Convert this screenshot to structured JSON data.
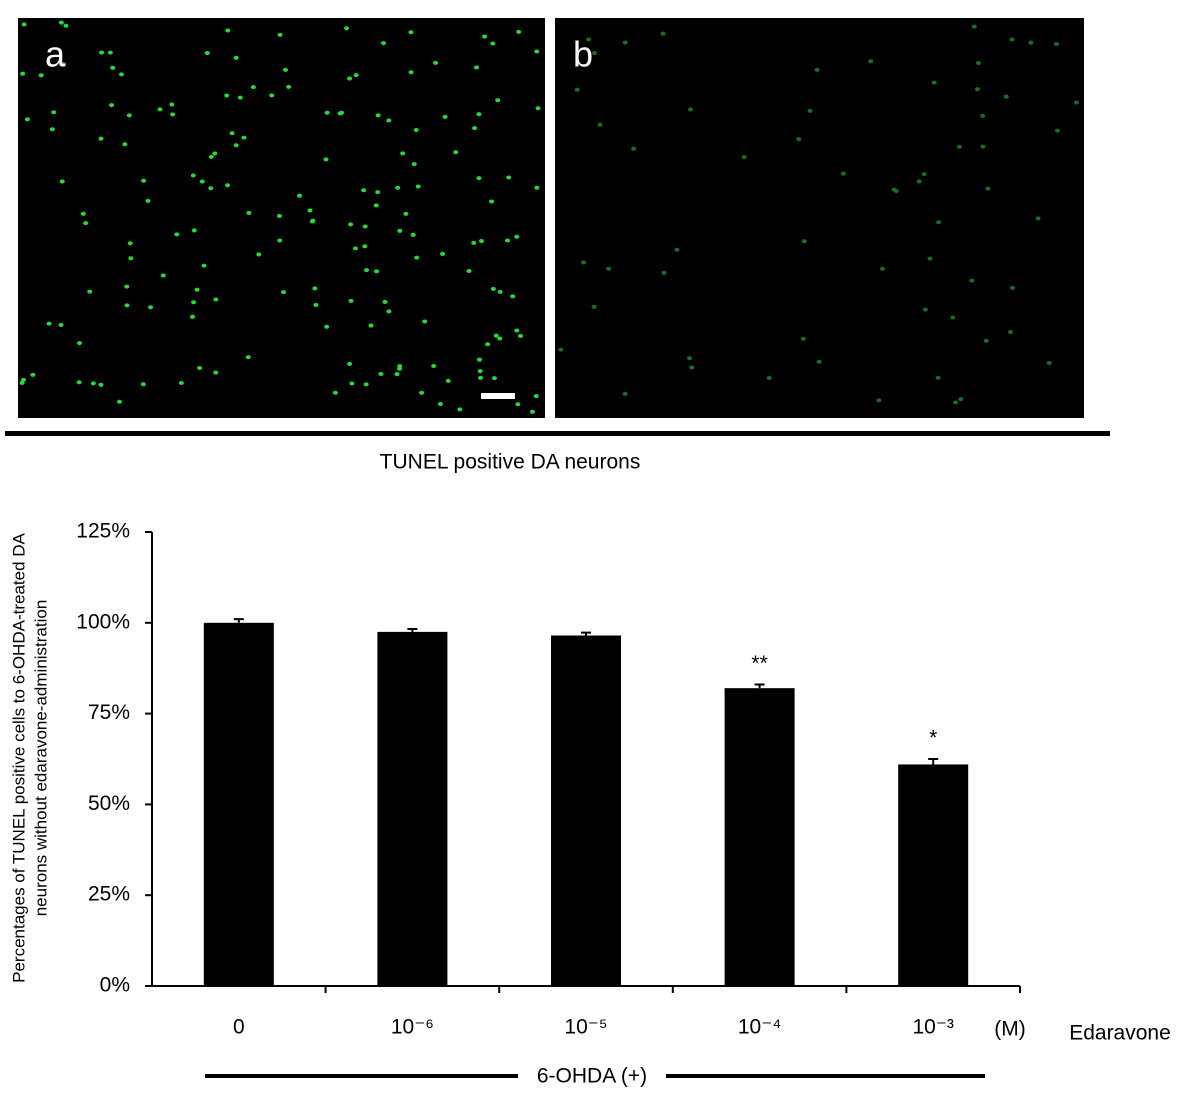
{
  "panels": {
    "a": "a",
    "b": "b"
  },
  "chart_data": {
    "type": "bar",
    "title": "TUNEL positive DA neurons",
    "ylabel": [
      "Percentages of TUNEL positive cells to 6-OHDA-treated DA",
      "neurons without edaravone-administration"
    ],
    "categories": [
      "0",
      "10⁻⁶",
      "10⁻⁵",
      "10⁻⁴",
      "10⁻³"
    ],
    "unit": "(M)",
    "xlabel": "Edaravone",
    "group_label": "6-OHDA (+)",
    "values": [
      100,
      97.5,
      96.5,
      82,
      61
    ],
    "errors": [
      1,
      0.8,
      0.8,
      1,
      1.5
    ],
    "annotations": [
      null,
      null,
      null,
      "**",
      "*"
    ],
    "color": "#000000",
    "ylim": [
      0,
      125
    ],
    "yticks": [
      {
        "value": 0,
        "label": "0%"
      },
      {
        "value": 25,
        "label": "25%"
      },
      {
        "value": 50,
        "label": "50%"
      },
      {
        "value": 75,
        "label": "75%"
      },
      {
        "value": 100,
        "label": "100%"
      },
      {
        "value": 125,
        "label": "125%"
      }
    ],
    "grid": false
  }
}
